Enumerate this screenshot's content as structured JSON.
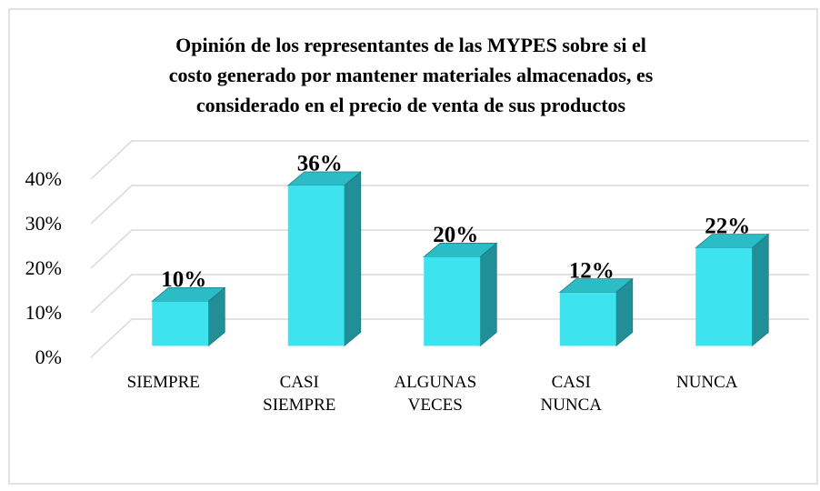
{
  "chart_data": {
    "type": "bar3d",
    "title": [
      "Opinión de los representantes de las MYPES sobre si el",
      "costo generado por mantener materiales almacenados, es",
      "considerado en el precio de venta de sus productos"
    ],
    "categories": [
      "SIEMPRE",
      "CASI SIEMPRE",
      "ALGUNAS VECES",
      "CASI NUNCA",
      "NUNCA"
    ],
    "values": [
      10,
      36,
      20,
      12,
      22
    ],
    "value_labels": [
      "10%",
      "36%",
      "20%",
      "12%",
      "22%"
    ],
    "color": "#3de3ee",
    "ylim": [
      0,
      40
    ],
    "yticks": [
      {
        "value": 0,
        "label": "0%"
      },
      {
        "value": 10,
        "label": "10%"
      },
      {
        "value": 20,
        "label": "20%"
      },
      {
        "value": 30,
        "label": "30%"
      },
      {
        "value": 40,
        "label": "40%"
      }
    ],
    "grid": true
  }
}
